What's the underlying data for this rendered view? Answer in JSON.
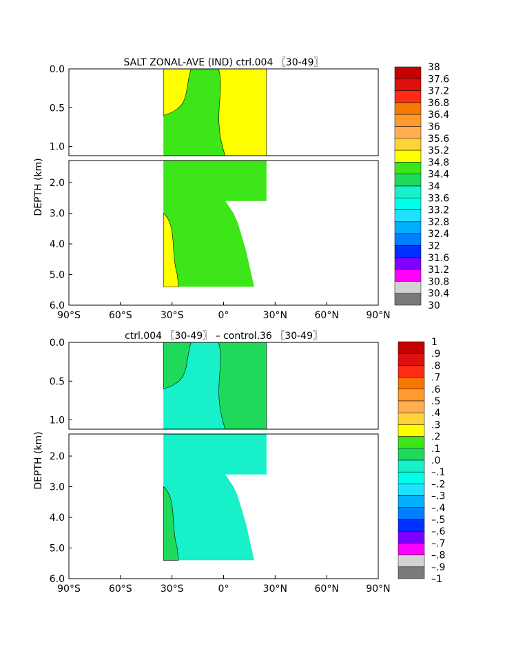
{
  "chart_data": [
    {
      "type": "heatmap",
      "title": "SALT ZONAL-AVE (IND) ctrl.004 〖30-49〗",
      "ylabel": "DEPTH (km)",
      "x_ticks": [
        "90°S",
        "60°S",
        "30°S",
        "0°",
        "30°N",
        "60°N",
        "90°N"
      ],
      "x_range": [
        -90,
        90
      ],
      "y_ticks_upper": [
        "0.0",
        "0.5",
        "1.0"
      ],
      "y_ticks_lower": [
        "2.0",
        "3.0",
        "4.0",
        "5.0",
        "6.0"
      ],
      "y_range_km": [
        0,
        6
      ],
      "data_lat_range": [
        -35,
        25
      ],
      "colorbar": {
        "labels": [
          "38",
          "37.6",
          "37.2",
          "36.8",
          "36.4",
          "36",
          "35.6",
          "35.2",
          "34.8",
          "34.4",
          "34",
          "33.6",
          "33.2",
          "32.8",
          "32.4",
          "32",
          "31.6",
          "31.2",
          "30.8",
          "30.4",
          "30"
        ],
        "colors": [
          "#c40000",
          "#dd0f0f",
          "#ff2b14",
          "#f57800",
          "#ff9a2e",
          "#ffae52",
          "#ffd337",
          "#ffff00",
          "#3ce619",
          "#1fd95a",
          "#17f0c8",
          "#00ffe8",
          "#1ee0ff",
          "#00b0ff",
          "#0080ff",
          "#0030ff",
          "#8000ff",
          "#ff00ff",
          "#d3d3d3",
          "#7a7a7a"
        ]
      },
      "field_colors": {
        "bg": "#1fd95a",
        "high": "#ffff00",
        "mid": "#3ce619"
      }
    },
    {
      "type": "heatmap",
      "title": "ctrl.004 〖30-49〗 – control.36 〖30-49〗",
      "ylabel": "DEPTH (km)",
      "x_ticks": [
        "90°S",
        "60°S",
        "30°S",
        "0°",
        "30°N",
        "60°N",
        "90°N"
      ],
      "x_range": [
        -90,
        90
      ],
      "y_ticks_upper": [
        "0.0",
        "0.5",
        "1.0"
      ],
      "y_ticks_lower": [
        "2.0",
        "3.0",
        "4.0",
        "5.0",
        "6.0"
      ],
      "y_range_km": [
        0,
        6
      ],
      "data_lat_range": [
        -35,
        25
      ],
      "colorbar": {
        "labels": [
          "1",
          ".9",
          ".8",
          ".7",
          ".6",
          ".5",
          ".4",
          ".3",
          ".2",
          ".1",
          ".0",
          "–.1",
          "–.2",
          "–.3",
          "–.4",
          "–.5",
          "–.6",
          "–.7",
          "–.8",
          "–.9",
          "–1"
        ],
        "colors": [
          "#c40000",
          "#dd0f0f",
          "#ff2b14",
          "#f57800",
          "#ff9a2e",
          "#ffae52",
          "#ffd337",
          "#ffff00",
          "#3ce619",
          "#1fd95a",
          "#17f0c8",
          "#00ffe8",
          "#1ee0ff",
          "#00b0ff",
          "#0080ff",
          "#0030ff",
          "#8000ff",
          "#ff00ff",
          "#d3d3d3",
          "#7a7a7a"
        ]
      },
      "field_colors": {
        "bg": "#00ffe8",
        "high": "#1fd95a",
        "mid": "#17f0c8"
      }
    }
  ]
}
